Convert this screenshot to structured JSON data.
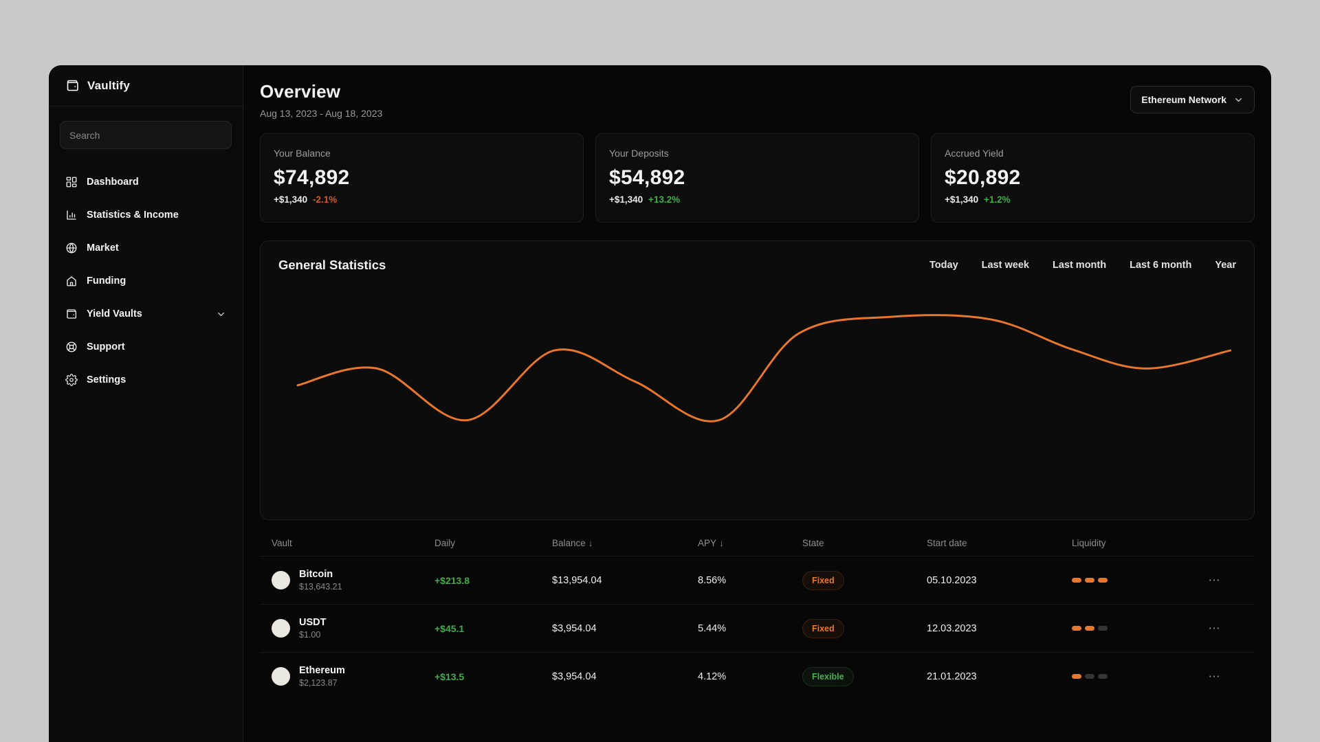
{
  "app": {
    "name": "Vaultify"
  },
  "sidebar": {
    "search_placeholder": "Search",
    "items": [
      {
        "label": "Dashboard",
        "icon": "dashboard-icon"
      },
      {
        "label": "Statistics & Income",
        "icon": "bar-chart-icon"
      },
      {
        "label": "Market",
        "icon": "globe-icon"
      },
      {
        "label": "Funding",
        "icon": "home-icon"
      },
      {
        "label": "Yield Vaults",
        "icon": "wallet-icon",
        "has_chevron": true
      },
      {
        "label": "Support",
        "icon": "lifebuoy-icon"
      },
      {
        "label": "Settings",
        "icon": "gear-icon"
      }
    ]
  },
  "header": {
    "title": "Overview",
    "date_range": "Aug 13, 2023 - Aug 18, 2023",
    "network_selector": {
      "label": "Ethereum Network"
    }
  },
  "stat_cards": [
    {
      "label": "Your Balance",
      "value": "$74,892",
      "delta_amount": "+$1,340",
      "delta_pct": "-2.1%",
      "delta_direction": "negative"
    },
    {
      "label": "Your Deposits",
      "value": "$54,892",
      "delta_amount": "+$1,340",
      "delta_pct": "+13.2%",
      "delta_direction": "positive"
    },
    {
      "label": "Accrued Yield",
      "value": "$20,892",
      "delta_amount": "+$1,340",
      "delta_pct": "+1.2%",
      "delta_direction": "positive"
    }
  ],
  "statistics_panel": {
    "title": "General Statistics",
    "filters": [
      "Today",
      "Last week",
      "Last month",
      "Last 6 month",
      "Year"
    ]
  },
  "chart_data": {
    "type": "line",
    "title": "General Statistics",
    "xlabel": "",
    "ylabel": "",
    "axes_visible": false,
    "grid": false,
    "legend": "none",
    "ylim": [
      0,
      100
    ],
    "series": [
      {
        "name": "Balance",
        "color": "#e8772e",
        "x_pct": [
          2,
          10.3,
          19.7,
          28.8,
          37.2,
          46,
          54.3,
          64,
          74.4,
          82.8,
          90.6,
          99.4
        ],
        "values": [
          47,
          60,
          20,
          74,
          50,
          20,
          87,
          100,
          98,
          75,
          60,
          74
        ]
      }
    ]
  },
  "table": {
    "columns": [
      {
        "label": "Vault"
      },
      {
        "label": "Daily"
      },
      {
        "label": "Balance",
        "sort_arrow": "↓"
      },
      {
        "label": "APY",
        "sort_arrow": "↓"
      },
      {
        "label": "State"
      },
      {
        "label": "Start date"
      },
      {
        "label": "Liquidity"
      },
      {
        "label": ""
      }
    ],
    "more_label": "⋯",
    "rows": [
      {
        "name": "Bitcoin",
        "price": "$13,643.21",
        "daily": "+$213.8",
        "balance": "$13,954.04",
        "apy": "8.56%",
        "state": "Fixed",
        "state_type": "fixed",
        "start_date": "05.10.2023",
        "liquidity": [
          true,
          true,
          true
        ]
      },
      {
        "name": "USDT",
        "price": "$1.00",
        "daily": "+$45.1",
        "balance": "$3,954.04",
        "apy": "5.44%",
        "state": "Fixed",
        "state_type": "fixed",
        "start_date": "12.03.2023",
        "liquidity": [
          true,
          true,
          false
        ]
      },
      {
        "name": "Ethereum",
        "price": "$2,123.87",
        "daily": "+$13.5",
        "balance": "$3,954.04",
        "apy": "4.12%",
        "state": "Flexible",
        "state_type": "flexible",
        "start_date": "21.01.2023",
        "liquidity": [
          true,
          false,
          false
        ]
      }
    ]
  },
  "colors": {
    "accent_orange": "#e8772e",
    "positive_green": "#3fae49",
    "negative_orange": "#c95d30",
    "outer_background": "#c9c9c9",
    "panel_background": "#0d0d0d"
  }
}
